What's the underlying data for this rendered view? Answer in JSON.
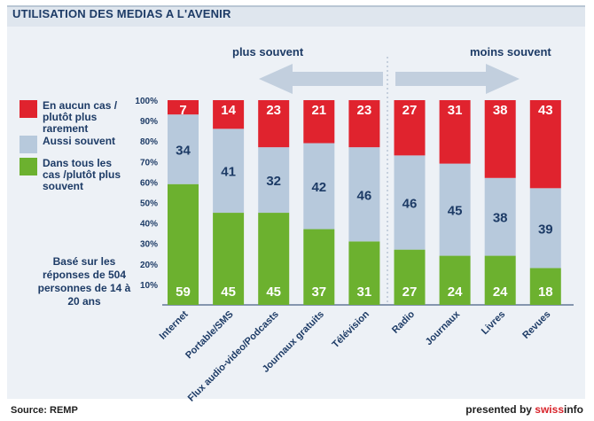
{
  "title": "UTILISATION DES MEDIAS A L'AVENIR",
  "direction_labels": {
    "left": "plus souvent",
    "right": "moins souvent"
  },
  "legend": [
    {
      "label": "En aucun cas / plutôt plus rarement",
      "color": "#e0232e"
    },
    {
      "label": "Aussi souvent",
      "color": "#b7c9dc"
    },
    {
      "label": "Dans tous les cas /plutôt plus souvent",
      "color": "#6cb12f"
    }
  ],
  "note": "Basé sur les réponses de 504 personnes de 14 à 20 ans",
  "source": "Source: REMP",
  "presented_by": {
    "prefix": "presented by ",
    "brand_a": "swiss",
    "brand_b": "info"
  },
  "chart_data": {
    "type": "bar",
    "stacked": true,
    "categories": [
      "Internet",
      "Portable/SMS",
      "Flux audio-video/Podcasts",
      "Journaux gratuits",
      "Télévision",
      "Radio",
      "Journaux",
      "Livres",
      "Revues"
    ],
    "series": [
      {
        "name": "Dans tous les cas /plutôt plus souvent",
        "color": "#6cb12f",
        "values": [
          59,
          45,
          45,
          37,
          31,
          27,
          24,
          24,
          18
        ]
      },
      {
        "name": "Aussi souvent",
        "color": "#b7c9dc",
        "values": [
          34,
          41,
          32,
          42,
          46,
          46,
          45,
          38,
          39
        ]
      },
      {
        "name": "En aucun cas / plutôt plus rarement",
        "color": "#e0232e",
        "values": [
          7,
          14,
          23,
          21,
          23,
          27,
          31,
          38,
          43
        ]
      }
    ],
    "y_ticks": [
      "10%",
      "20%",
      "30%",
      "40%",
      "50%",
      "60%",
      "70%",
      "80%",
      "90%",
      "100%"
    ],
    "ylim": [
      0,
      100
    ]
  }
}
